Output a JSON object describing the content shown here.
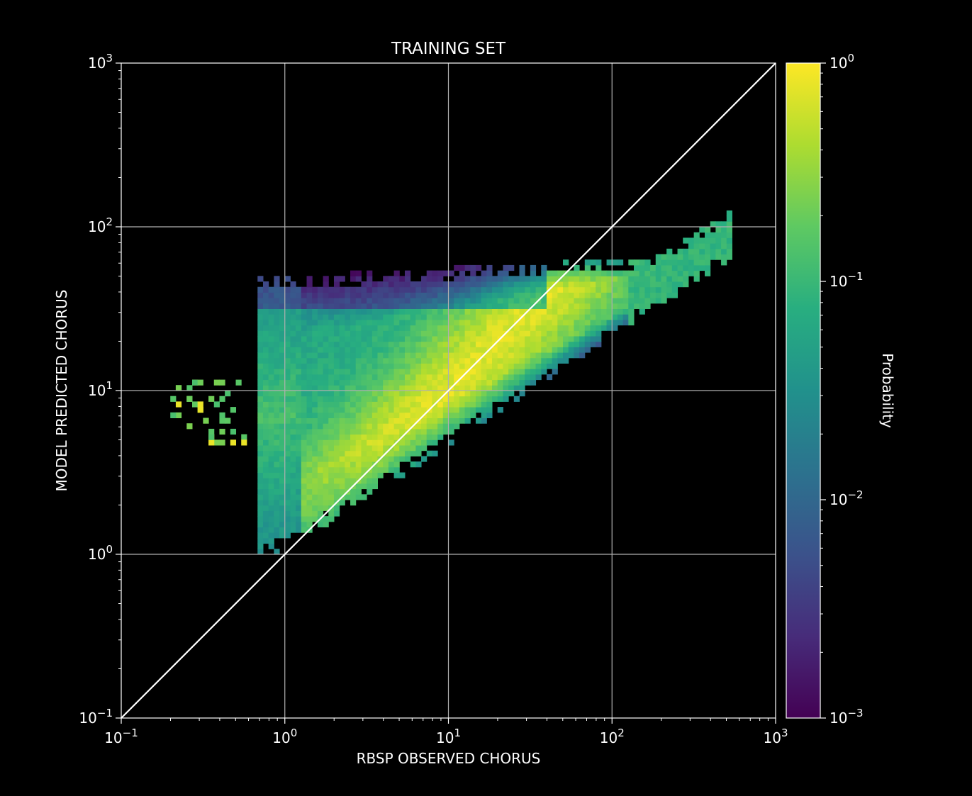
{
  "chart_data": {
    "type": "heatmap",
    "title": "TRAINING SET",
    "xlabel": "RBSP OBSERVED CHORUS",
    "ylabel": "MODEL PREDICTED CHORUS",
    "xscale": "log",
    "yscale": "log",
    "xlim": [
      0.1,
      1000
    ],
    "ylim": [
      0.1,
      1000
    ],
    "x_ticks": [
      {
        "base": "10",
        "exp": "−1"
      },
      {
        "base": "10",
        "exp": "0"
      },
      {
        "base": "10",
        "exp": "1"
      },
      {
        "base": "10",
        "exp": "2"
      },
      {
        "base": "10",
        "exp": "3"
      }
    ],
    "y_ticks": [
      {
        "base": "10",
        "exp": "−1"
      },
      {
        "base": "10",
        "exp": "0"
      },
      {
        "base": "10",
        "exp": "1"
      },
      {
        "base": "10",
        "exp": "2"
      },
      {
        "base": "10",
        "exp": "3"
      }
    ],
    "grid": true,
    "reference_line": {
      "type": "y=x",
      "color": "#ffffff"
    },
    "colorbar": {
      "label": "Probability",
      "scale": "log",
      "range": [
        0.001,
        1
      ],
      "ticks": [
        {
          "base": "10",
          "exp": "−3"
        },
        {
          "base": "10",
          "exp": "−2"
        },
        {
          "base": "10",
          "exp": "−1"
        },
        {
          "base": "10",
          "exp": "0"
        }
      ],
      "colormap": "viridis"
    }
  }
}
